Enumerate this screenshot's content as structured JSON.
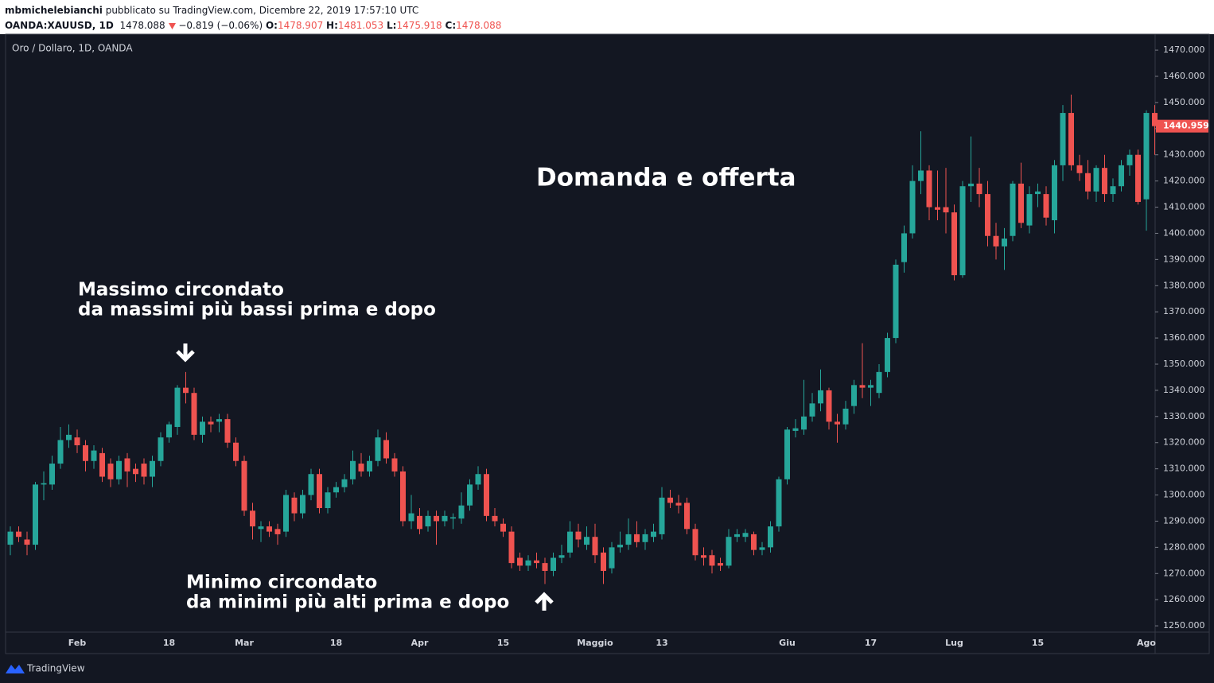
{
  "header": {
    "author": "mbmichelebianchi",
    "published": "pubblicato su TradingView.com, Dicembre 22, 2019 17:57:10 UTC",
    "symbol": "OANDA:XAUUSD, 1D",
    "price": "1478.088",
    "change": "−0.819 (−0.06%)",
    "ohlc": [
      {
        "label": "O:",
        "value": "1478.907"
      },
      {
        "label": "H:",
        "value": "1481.053"
      },
      {
        "label": "L:",
        "value": "1475.918"
      },
      {
        "label": "C:",
        "value": "1478.088"
      }
    ]
  },
  "footer": {
    "brand": "TradingView"
  },
  "chart_data": {
    "type": "candlestick",
    "legend": "Oro / Dollaro, 1D, OANDA",
    "title": "Domanda e offerta",
    "annotations": [
      [
        "Massimo circondato",
        "da massimi più bassi prima e dopo"
      ],
      [
        "Minimo circondato",
        "da minimi più alti prima e dopo"
      ]
    ],
    "up_color": "#26a69a",
    "down_color": "#ef5350",
    "grid": false,
    "ylim": [
      1247.6,
      1476.1
    ],
    "yticks": [
      {
        "value": 1250,
        "label": "1250.000"
      },
      {
        "value": 1260,
        "label": "1260.000"
      },
      {
        "value": 1270,
        "label": "1270.000"
      },
      {
        "value": 1280,
        "label": "1280.000"
      },
      {
        "value": 1290,
        "label": "1290.000"
      },
      {
        "value": 1300,
        "label": "1300.000"
      },
      {
        "value": 1310,
        "label": "1310.000"
      },
      {
        "value": 1320,
        "label": "1320.000"
      },
      {
        "value": 1330,
        "label": "1330.000"
      },
      {
        "value": 1340,
        "label": "1340.000"
      },
      {
        "value": 1350,
        "label": "1350.000"
      },
      {
        "value": 1360,
        "label": "1360.000"
      },
      {
        "value": 1370,
        "label": "1370.000"
      },
      {
        "value": 1380,
        "label": "1380.000"
      },
      {
        "value": 1390,
        "label": "1390.000"
      },
      {
        "value": 1400,
        "label": "1400.000"
      },
      {
        "value": 1410,
        "label": "1410.000"
      },
      {
        "value": 1420,
        "label": "1420.000"
      },
      {
        "value": 1430,
        "label": "1430.000"
      },
      {
        "value": 1440,
        "label": "1440.000"
      },
      {
        "value": 1450,
        "label": "1450.000"
      },
      {
        "value": 1460,
        "label": "1460.000"
      },
      {
        "value": 1470,
        "label": "1470.000"
      }
    ],
    "last_price": {
      "value": 1440.959,
      "label": "1440.959"
    },
    "categories": [
      null,
      null,
      null,
      null,
      null,
      null,
      null,
      null,
      "Feb",
      null,
      null,
      null,
      null,
      null,
      null,
      null,
      null,
      null,
      null,
      "18",
      null,
      null,
      null,
      null,
      null,
      null,
      null,
      null,
      "Mar",
      null,
      null,
      null,
      null,
      null,
      null,
      null,
      null,
      null,
      null,
      "18",
      null,
      null,
      null,
      null,
      null,
      null,
      null,
      null,
      null,
      "Apr",
      null,
      null,
      null,
      null,
      null,
      null,
      null,
      null,
      null,
      "15",
      null,
      null,
      null,
      null,
      null,
      null,
      null,
      null,
      null,
      null,
      "Maggio",
      null,
      null,
      null,
      null,
      null,
      null,
      null,
      "13",
      null,
      null,
      null,
      null,
      null,
      null,
      null,
      null,
      null,
      null,
      null,
      null,
      null,
      null,
      "Giu",
      null,
      null,
      null,
      null,
      null,
      null,
      null,
      null,
      null,
      "17",
      null,
      null,
      null,
      null,
      null,
      null,
      null,
      null,
      null,
      "Lug",
      null,
      null,
      null,
      null,
      null,
      null,
      null,
      null,
      null,
      "15",
      null,
      null,
      null,
      null,
      null,
      null,
      null,
      null,
      null,
      null,
      null,
      null,
      "Ago",
      null
    ],
    "candles": [
      [
        1281,
        1288,
        1277,
        1286
      ],
      [
        1286,
        1288,
        1282,
        1284
      ],
      [
        1283,
        1286,
        1277,
        1281
      ],
      [
        1281,
        1305,
        1279,
        1304
      ],
      [
        1304,
        1309,
        1298,
        1304.5
      ],
      [
        1304,
        1315,
        1302,
        1312
      ],
      [
        1312,
        1326,
        1310,
        1321
      ],
      [
        1321,
        1327,
        1318,
        1323
      ],
      [
        1322,
        1325,
        1316,
        1319
      ],
      [
        1319,
        1321,
        1309,
        1313
      ],
      [
        1313,
        1319,
        1310,
        1317
      ],
      [
        1316,
        1318,
        1305,
        1307
      ],
      [
        1312,
        1314,
        1303,
        1306
      ],
      [
        1306,
        1315,
        1304,
        1313
      ],
      [
        1314,
        1316,
        1303,
        1309
      ],
      [
        1310,
        1312,
        1305,
        1308
      ],
      [
        1312,
        1314,
        1304,
        1307
      ],
      [
        1307,
        1315,
        1303,
        1313
      ],
      [
        1313,
        1324,
        1311,
        1322
      ],
      [
        1322,
        1328,
        1320,
        1327
      ],
      [
        1326,
        1342,
        1323,
        1341
      ],
      [
        1341,
        1347,
        1335,
        1339
      ],
      [
        1339,
        1341,
        1321,
        1323
      ],
      [
        1323,
        1330,
        1320,
        1328
      ],
      [
        1328,
        1330,
        1324,
        1327
      ],
      [
        1328,
        1331,
        1324,
        1329
      ],
      [
        1329,
        1331,
        1318,
        1320
      ],
      [
        1320,
        1322,
        1311,
        1313
      ],
      [
        1313,
        1315,
        1292,
        1294
      ],
      [
        1294,
        1297,
        1283,
        1288
      ],
      [
        1287,
        1290,
        1282,
        1288
      ],
      [
        1288,
        1290,
        1284,
        1286
      ],
      [
        1287,
        1289,
        1281,
        1285
      ],
      [
        1286,
        1302,
        1284,
        1300
      ],
      [
        1299,
        1301,
        1290,
        1293
      ],
      [
        1293,
        1302,
        1291,
        1300
      ],
      [
        1300,
        1310,
        1298,
        1308
      ],
      [
        1308,
        1310,
        1293,
        1295
      ],
      [
        1295,
        1303,
        1293,
        1301
      ],
      [
        1301,
        1305,
        1299,
        1303
      ],
      [
        1303,
        1308,
        1301,
        1306
      ],
      [
        1306,
        1317,
        1304,
        1313
      ],
      [
        1312,
        1316,
        1307,
        1309
      ],
      [
        1309,
        1315,
        1307,
        1313
      ],
      [
        1313,
        1325,
        1311,
        1322
      ],
      [
        1321,
        1324,
        1312,
        1314
      ],
      [
        1314,
        1316,
        1307,
        1309
      ],
      [
        1309,
        1311,
        1288,
        1290
      ],
      [
        1290,
        1300,
        1287,
        1293
      ],
      [
        1292,
        1295,
        1285,
        1287
      ],
      [
        1288,
        1294,
        1286,
        1292
      ],
      [
        1292,
        1294,
        1281,
        1290
      ],
      [
        1290,
        1294,
        1288,
        1292
      ],
      [
        1291,
        1293,
        1287,
        1291.5
      ],
      [
        1291,
        1301,
        1289,
        1296
      ],
      [
        1296,
        1306,
        1294,
        1304
      ],
      [
        1304,
        1311,
        1302,
        1308
      ],
      [
        1308,
        1310,
        1290,
        1292
      ],
      [
        1292,
        1295,
        1288,
        1290
      ],
      [
        1289,
        1291,
        1284,
        1286
      ],
      [
        1286,
        1288,
        1272,
        1274
      ],
      [
        1276,
        1278,
        1271,
        1273
      ],
      [
        1273,
        1277,
        1271,
        1275
      ],
      [
        1275,
        1278,
        1272,
        1274
      ],
      [
        1274,
        1276,
        1266,
        1271
      ],
      [
        1271,
        1278,
        1269,
        1276
      ],
      [
        1276,
        1281,
        1274,
        1277
      ],
      [
        1278,
        1290,
        1276,
        1286
      ],
      [
        1286,
        1289,
        1280,
        1283
      ],
      [
        1281,
        1288,
        1279,
        1284
      ],
      [
        1284,
        1289,
        1274,
        1277
      ],
      [
        1278,
        1280,
        1266,
        1271
      ],
      [
        1272,
        1282,
        1270,
        1280
      ],
      [
        1280,
        1286,
        1278,
        1281
      ],
      [
        1281,
        1291,
        1279,
        1285
      ],
      [
        1285,
        1290,
        1280,
        1282
      ],
      [
        1282,
        1287,
        1279,
        1285
      ],
      [
        1284,
        1289,
        1282,
        1286
      ],
      [
        1285,
        1303,
        1283,
        1299
      ],
      [
        1299,
        1302,
        1295,
        1297
      ],
      [
        1297,
        1300,
        1293,
        1296
      ],
      [
        1297,
        1299,
        1285,
        1287
      ],
      [
        1287,
        1289,
        1275,
        1277
      ],
      [
        1277,
        1280,
        1273,
        1276
      ],
      [
        1277,
        1279,
        1270,
        1273
      ],
      [
        1274,
        1276,
        1271,
        1273
      ],
      [
        1273,
        1287,
        1272,
        1284
      ],
      [
        1284,
        1287,
        1282,
        1285
      ],
      [
        1284,
        1287,
        1282,
        1285.5
      ],
      [
        1285,
        1286,
        1277,
        1279
      ],
      [
        1279,
        1282,
        1277,
        1280
      ],
      [
        1280,
        1290,
        1278,
        1288
      ],
      [
        1288,
        1307,
        1286,
        1306
      ],
      [
        1306,
        1326,
        1304,
        1325
      ],
      [
        1324.5,
        1329,
        1322,
        1325.5
      ],
      [
        1325,
        1344,
        1323,
        1330
      ],
      [
        1330,
        1339,
        1328,
        1335
      ],
      [
        1335,
        1348,
        1332,
        1340
      ],
      [
        1340,
        1341,
        1325,
        1328
      ],
      [
        1328,
        1331,
        1320,
        1327
      ],
      [
        1327,
        1336,
        1325,
        1333
      ],
      [
        1334,
        1344,
        1331,
        1342
      ],
      [
        1342,
        1358,
        1337,
        1341
      ],
      [
        1341,
        1344,
        1334,
        1342
      ],
      [
        1339,
        1350,
        1337,
        1347
      ],
      [
        1347,
        1362,
        1345,
        1360
      ],
      [
        1360,
        1390,
        1358,
        1388
      ],
      [
        1389,
        1403,
        1385,
        1400
      ],
      [
        1400,
        1426,
        1398,
        1420
      ],
      [
        1420,
        1439,
        1415,
        1424
      ],
      [
        1424,
        1426,
        1405,
        1410
      ],
      [
        1410,
        1424,
        1405,
        1409
      ],
      [
        1410,
        1425,
        1400,
        1408
      ],
      [
        1408,
        1411,
        1382,
        1384
      ],
      [
        1384,
        1420,
        1383,
        1418
      ],
      [
        1418,
        1437,
        1412,
        1419
      ],
      [
        1419,
        1425,
        1410,
        1415
      ],
      [
        1415,
        1420,
        1395,
        1399
      ],
      [
        1399,
        1404,
        1390,
        1395
      ],
      [
        1395,
        1402,
        1386,
        1398
      ],
      [
        1399,
        1420,
        1397,
        1419
      ],
      [
        1419,
        1427,
        1402,
        1404
      ],
      [
        1403,
        1418,
        1400,
        1415
      ],
      [
        1415,
        1419,
        1410,
        1416
      ],
      [
        1415,
        1418,
        1403,
        1406
      ],
      [
        1405,
        1428,
        1400,
        1426
      ],
      [
        1426,
        1449,
        1420,
        1446
      ],
      [
        1446,
        1453,
        1424,
        1426
      ],
      [
        1426,
        1430,
        1420,
        1423
      ],
      [
        1423,
        1428,
        1413,
        1416
      ],
      [
        1416,
        1426,
        1412,
        1425
      ],
      [
        1425,
        1430,
        1412,
        1415
      ],
      [
        1415,
        1421,
        1412,
        1418
      ],
      [
        1418,
        1428,
        1416,
        1426
      ],
      [
        1426,
        1432,
        1422,
        1430
      ],
      [
        1430,
        1432,
        1411,
        1412
      ],
      [
        1413,
        1447,
        1401,
        1446
      ],
      [
        1446,
        1449,
        1430,
        1440.959
      ]
    ]
  }
}
